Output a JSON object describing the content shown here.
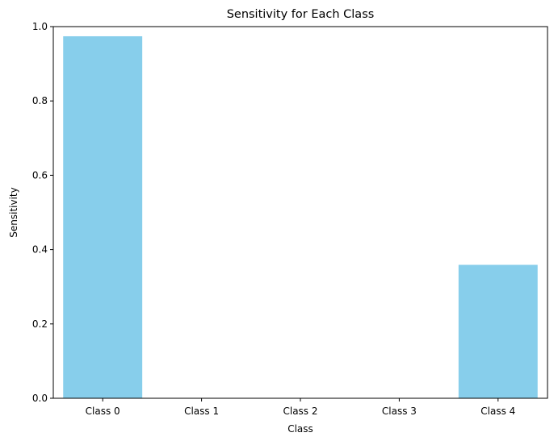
{
  "chart_data": {
    "type": "bar",
    "title": "Sensitivity for Each Class",
    "xlabel": "Class",
    "ylabel": "Sensitivity",
    "categories": [
      "Class 0",
      "Class 1",
      "Class 2",
      "Class 3",
      "Class 4"
    ],
    "values": [
      0.974,
      0.0,
      0.0,
      0.0,
      0.359
    ],
    "ylim": [
      0,
      1.0
    ],
    "yticks": [
      {
        "value": 0.0,
        "label": "0.0"
      },
      {
        "value": 0.2,
        "label": "0.2"
      },
      {
        "value": 0.4,
        "label": "0.4"
      },
      {
        "value": 0.6,
        "label": "0.6"
      },
      {
        "value": 0.8,
        "label": "0.8"
      },
      {
        "value": 1.0,
        "label": "1.0"
      }
    ],
    "grid": false,
    "legend": "none",
    "bar_color": "#87ceeb"
  }
}
